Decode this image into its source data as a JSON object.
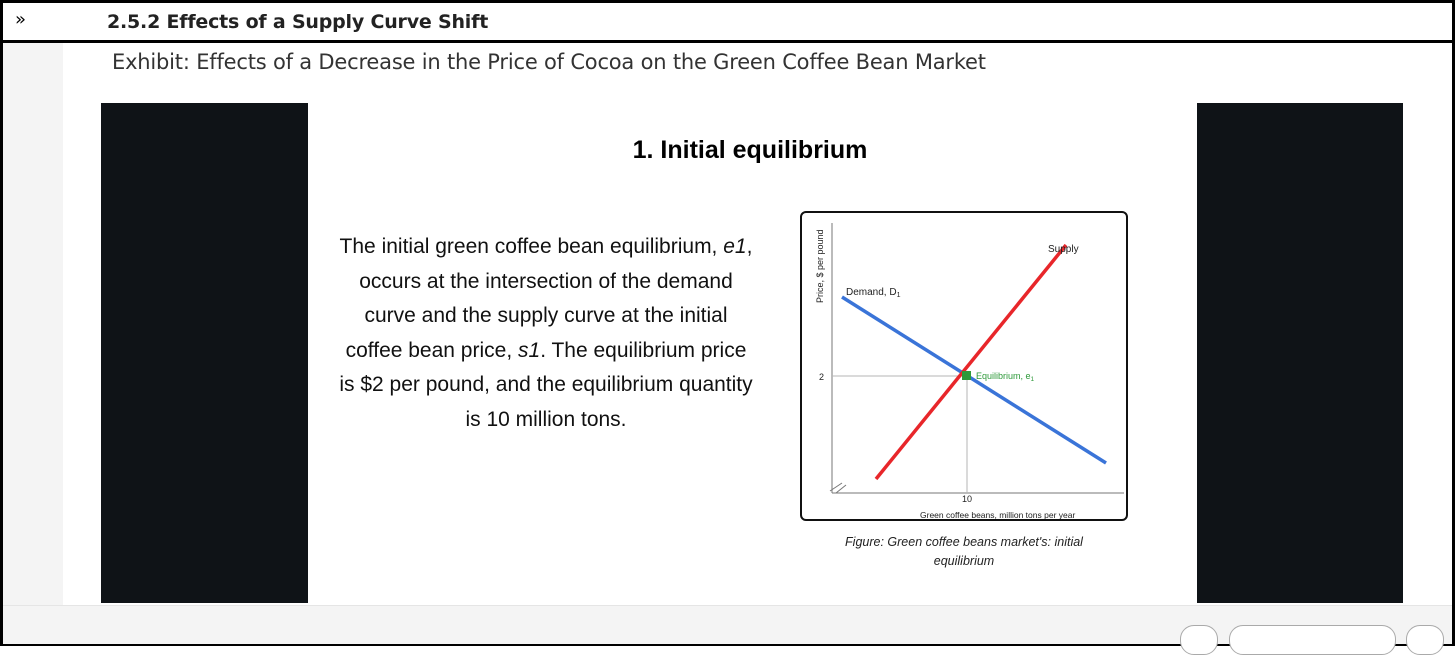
{
  "header": {
    "expand_icon_glyph": "»",
    "section_title": "2.5.2 Effects of a Supply Curve Shift"
  },
  "exhibit": {
    "title": "Exhibit: Effects of a Decrease in the Price of Cocoa on the Green Coffee Bean Market"
  },
  "slide": {
    "heading": "1. Initial equilibrium",
    "text_parts": [
      "The initial green coffee bean equilibrium, ",
      "e1",
      ", occurs at the intersection of the demand curve and the supply curve at the initial coffee bean price, ",
      "s1",
      ". The equilibrium price is $2 per pound, and the equilibrium quantity is 10 million tons."
    ],
    "figure_caption": "Figure:  Green coffee beans market's: initial equilibrium"
  },
  "graph": {
    "y_axis_label": "Price, $ per pound",
    "x_axis_label": "Green coffee beans, million tons per year",
    "y_tick": "2",
    "x_tick": "10",
    "demand_label": "Demand, D",
    "demand_subscript": "1",
    "supply_label": "Supply",
    "equilibrium_label": "Equilibrium, e",
    "equilibrium_subscript": "1",
    "colors": {
      "demand": "#3a74d8",
      "supply": "#e8262a",
      "equilibrium": "#2e9a3a",
      "guide": "#b5b5b5"
    }
  },
  "colors": {
    "side_panels": "#0f1317",
    "frame": "#000000"
  }
}
